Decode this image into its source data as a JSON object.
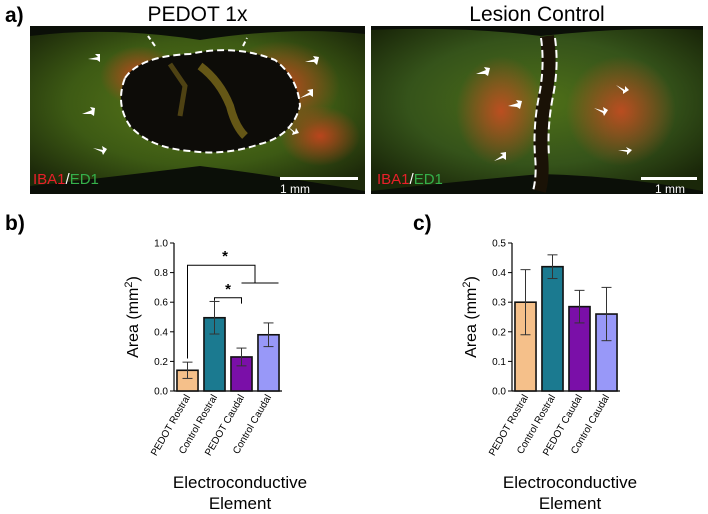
{
  "panel_labels": {
    "a": "a)",
    "b": "b)",
    "c": "c)"
  },
  "images": [
    {
      "title": "PEDOT 1x",
      "stain_red": "IBA1",
      "stain_sep": "/",
      "stain_green": "ED1",
      "scale_label": "1 mm"
    },
    {
      "title": "Lesion Control",
      "stain_red": "IBA1",
      "stain_sep": "/",
      "stain_green": "ED1",
      "scale_label": "1 mm"
    }
  ],
  "colors": {
    "stain_red": "#e8202a",
    "stain_green": "#35b04a",
    "bar_outline": "#111111"
  },
  "chart_data": [
    {
      "type": "bar",
      "panel": "b)",
      "categories": [
        "PEDOT Rostral",
        "Control Rostral",
        "PEDOT Caudal",
        "Control Caudal"
      ],
      "values": [
        0.14,
        0.495,
        0.23,
        0.38
      ],
      "errors": [
        0.055,
        0.11,
        0.06,
        0.08
      ],
      "colors": [
        "#f5c08a",
        "#1b7a90",
        "#7a0fa8",
        "#9898f8"
      ],
      "ylabel": "Area (mm",
      "ylabel_sup": "2",
      "ylabel_end": ")",
      "xlabel": [
        "Electroconductive",
        "Element"
      ],
      "ylim": [
        0,
        1.0
      ],
      "yticks": [
        "0.0",
        "0.2",
        "0.4",
        "0.6",
        "0.8",
        "1.0"
      ],
      "significance": [
        {
          "from": "PEDOT Rostral",
          "to": "PEDOT Caudal / Control Caudal",
          "label": "*"
        },
        {
          "from": "Control Rostral",
          "to": "PEDOT Caudal",
          "label": "*"
        }
      ]
    },
    {
      "type": "bar",
      "panel": "c)",
      "categories": [
        "PEDOT Rostral",
        "Control Rostral",
        "PEDOT Caudal",
        "Control Caudal"
      ],
      "values": [
        0.3,
        0.42,
        0.285,
        0.26
      ],
      "errors": [
        0.11,
        0.04,
        0.055,
        0.09
      ],
      "colors": [
        "#f5c08a",
        "#1b7a90",
        "#7a0fa8",
        "#9898f8"
      ],
      "ylabel": "Area (mm",
      "ylabel_sup": "2",
      "ylabel_end": ")",
      "xlabel": [
        "Electroconductive",
        "Element"
      ],
      "ylim": [
        0,
        0.5
      ],
      "yticks": [
        "0.0",
        "0.1",
        "0.2",
        "0.3",
        "0.4",
        "0.5"
      ],
      "significance": []
    }
  ]
}
